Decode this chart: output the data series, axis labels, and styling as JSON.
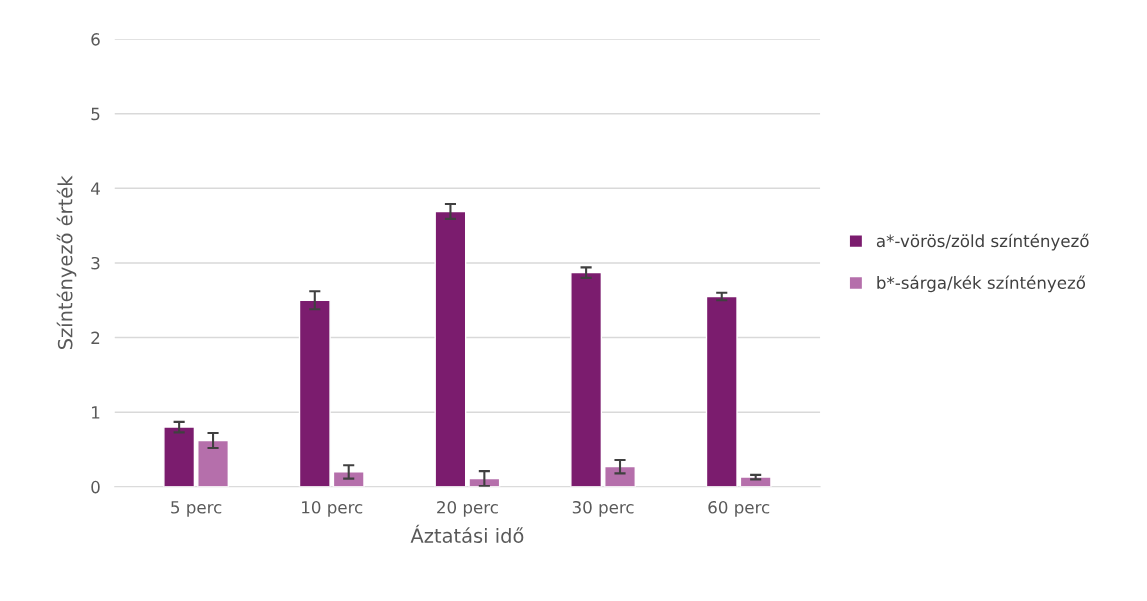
{
  "chart_data": {
    "type": "bar",
    "xlabel": "Áztatási idő",
    "ylabel": "Színtényező érték",
    "categories": [
      "5 perc",
      "10 perc",
      "20 perc",
      "30 perc",
      "60 perc"
    ],
    "series": [
      {
        "name": "a*-vörös/zöld színtényező",
        "color": "#7b1c6e",
        "values": [
          0.8,
          2.5,
          3.69,
          2.87,
          2.55
        ],
        "errors": [
          0.07,
          0.12,
          0.1,
          0.07,
          0.05
        ]
      },
      {
        "name": "b*-sárga/kék színtényező",
        "color": "#b56fab",
        "values": [
          0.62,
          0.2,
          0.11,
          0.27,
          0.13
        ],
        "errors": [
          0.1,
          0.09,
          0.1,
          0.09,
          0.03
        ]
      }
    ],
    "ylim": [
      0,
      6
    ],
    "yticks": [
      0,
      1,
      2,
      3,
      4,
      5,
      6
    ],
    "grid": "y",
    "legend": "right"
  }
}
